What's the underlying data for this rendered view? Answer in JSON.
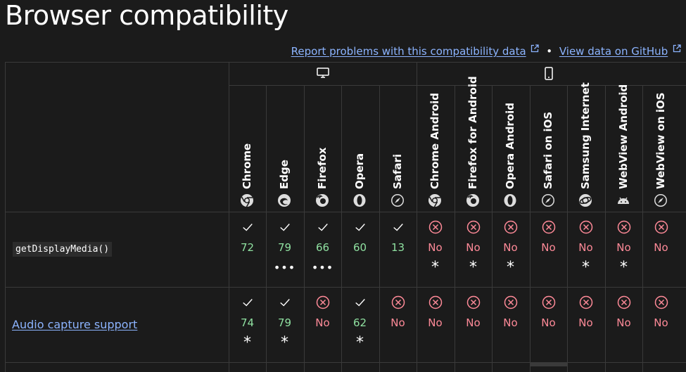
{
  "page_title": "Browser compatibility",
  "links": {
    "report": "Report problems with this compatibility data",
    "separator": "•",
    "github": "View data on GitHub"
  },
  "groups": [
    {
      "name": "desktop",
      "icon": "desktop-icon"
    },
    {
      "name": "mobile",
      "icon": "mobile-icon"
    }
  ],
  "browsers": [
    {
      "name": "Chrome",
      "icon": "chrome-icon"
    },
    {
      "name": "Edge",
      "icon": "edge-icon"
    },
    {
      "name": "Firefox",
      "icon": "firefox-icon"
    },
    {
      "name": "Opera",
      "icon": "opera-icon"
    },
    {
      "name": "Safari",
      "icon": "safari-icon"
    },
    {
      "name": "Chrome Android",
      "icon": "chrome-icon"
    },
    {
      "name": "Firefox for Android",
      "icon": "firefox-icon"
    },
    {
      "name": "Opera Android",
      "icon": "opera-icon"
    },
    {
      "name": "Safari on iOS",
      "icon": "safari-icon"
    },
    {
      "name": "Samsung Internet",
      "icon": "samsung-internet-icon"
    },
    {
      "name": "WebView Android",
      "icon": "android-icon"
    },
    {
      "name": "WebView on iOS",
      "icon": "safari-icon"
    }
  ],
  "features": [
    {
      "name": "getDisplayMedia()",
      "is_code": true,
      "support": [
        {
          "supported": true,
          "version": "72",
          "note": ""
        },
        {
          "supported": true,
          "version": "79",
          "note": "more"
        },
        {
          "supported": true,
          "version": "66",
          "note": "more"
        },
        {
          "supported": true,
          "version": "60",
          "note": ""
        },
        {
          "supported": true,
          "version": "13",
          "note": ""
        },
        {
          "supported": false,
          "version": "No",
          "note": "asterisk"
        },
        {
          "supported": false,
          "version": "No",
          "note": "asterisk"
        },
        {
          "supported": false,
          "version": "No",
          "note": "asterisk"
        },
        {
          "supported": false,
          "version": "No",
          "note": ""
        },
        {
          "supported": false,
          "version": "No",
          "note": "asterisk"
        },
        {
          "supported": false,
          "version": "No",
          "note": "asterisk"
        },
        {
          "supported": false,
          "version": "No",
          "note": ""
        }
      ]
    },
    {
      "name": "Audio capture support",
      "is_code": false,
      "support": [
        {
          "supported": true,
          "version": "74",
          "note": "asterisk"
        },
        {
          "supported": true,
          "version": "79",
          "note": "asterisk"
        },
        {
          "supported": false,
          "version": "No",
          "note": ""
        },
        {
          "supported": true,
          "version": "62",
          "note": "asterisk"
        },
        {
          "supported": false,
          "version": "No",
          "note": ""
        },
        {
          "supported": false,
          "version": "No",
          "note": ""
        },
        {
          "supported": false,
          "version": "No",
          "note": ""
        },
        {
          "supported": false,
          "version": "No",
          "note": ""
        },
        {
          "supported": false,
          "version": "No",
          "note": ""
        },
        {
          "supported": false,
          "version": "No",
          "note": ""
        },
        {
          "supported": false,
          "version": "No",
          "note": ""
        },
        {
          "supported": false,
          "version": "No",
          "note": ""
        }
      ]
    }
  ],
  "colors": {
    "background": "#1b1b1b",
    "border": "#3a3a3a",
    "link": "#8cb4ff",
    "supported": "#8fe0a0",
    "unsupported": "#ff8a98"
  },
  "note_symbols": {
    "asterisk": "*",
    "more": "•••"
  }
}
